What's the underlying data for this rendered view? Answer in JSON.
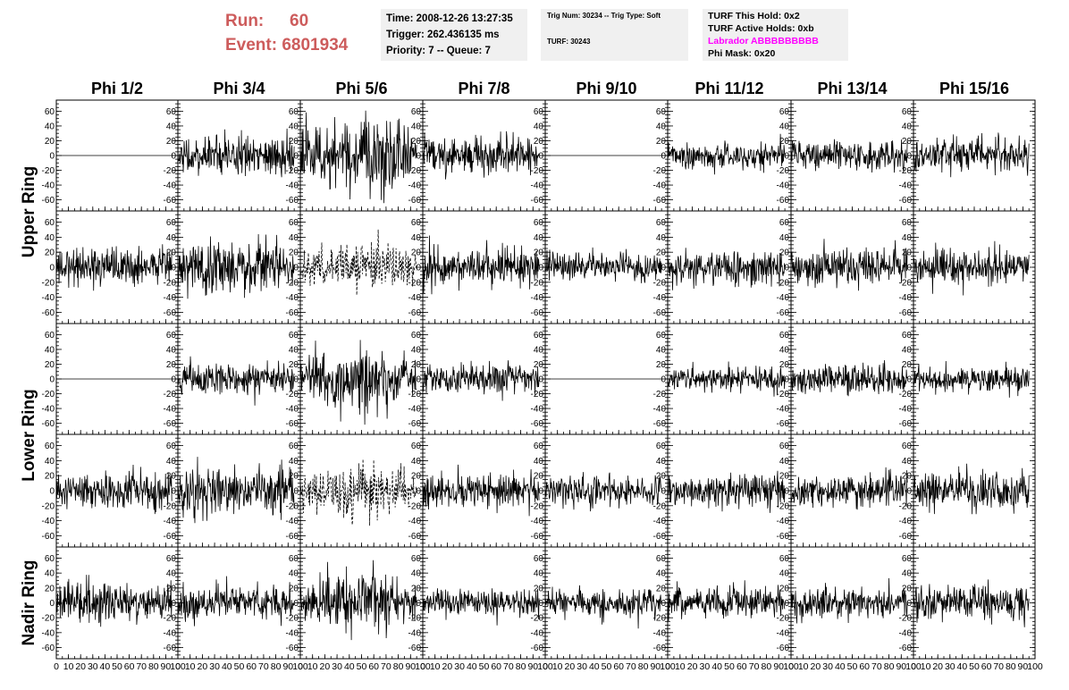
{
  "header": {
    "run_label": "Run:",
    "run_value": "60",
    "event_label": "Event:",
    "event_value": "6801934"
  },
  "time_box": {
    "time": "Time: 2008-12-26 13:27:35",
    "trigger": "Trigger: 262.436135 ms",
    "priority": "Priority: 7 -- Queue: 7"
  },
  "trig_box": {
    "trig": "Trig Num: 30234 -- Trig Type: Soft",
    "turf": "TURF: 30243"
  },
  "turf_box": {
    "hold": "TURF This Hold: 0x2",
    "active": "TURF Active Holds: 0xb",
    "labrador": "Labrador ABBBBBBBBB",
    "phi_mask": "Phi Mask: 0x20",
    "labrador_color": "#ff00ff"
  },
  "chart_data": {
    "type": "line",
    "columns": [
      "Phi 1/2",
      "Phi 3/4",
      "Phi 5/6",
      "Phi 7/8",
      "Phi 9/10",
      "Phi 11/12",
      "Phi 13/14",
      "Phi 15/16"
    ],
    "ring_labels": [
      "Upper Ring",
      "Lower Ring",
      "Nadir Ring"
    ],
    "rows": 5,
    "ylim": [
      -75,
      75
    ],
    "yticks": [
      -60,
      -40,
      -20,
      0,
      20,
      40,
      60
    ],
    "xlim": [
      0,
      100
    ],
    "xticks": [
      0,
      10,
      20,
      30,
      40,
      50,
      60,
      70,
      80,
      90,
      100
    ],
    "trace_length_ns": 95,
    "amplitude_rms_mV": [
      [
        0,
        13,
        22,
        12,
        0,
        9,
        11,
        12
      ],
      [
        14,
        17,
        13,
        12,
        9,
        11,
        11,
        11
      ],
      [
        0,
        11,
        17,
        10,
        0,
        8,
        10,
        9
      ],
      [
        12,
        16,
        14,
        12,
        10,
        11,
        10,
        13
      ],
      [
        13,
        11,
        17,
        9,
        10,
        11,
        10,
        11
      ]
    ],
    "dashed_panels": [
      [
        1,
        2
      ],
      [
        3,
        2
      ]
    ],
    "flat_panels": [
      [
        0,
        0
      ],
      [
        0,
        4
      ],
      [
        2,
        0
      ],
      [
        2,
        4
      ]
    ]
  }
}
